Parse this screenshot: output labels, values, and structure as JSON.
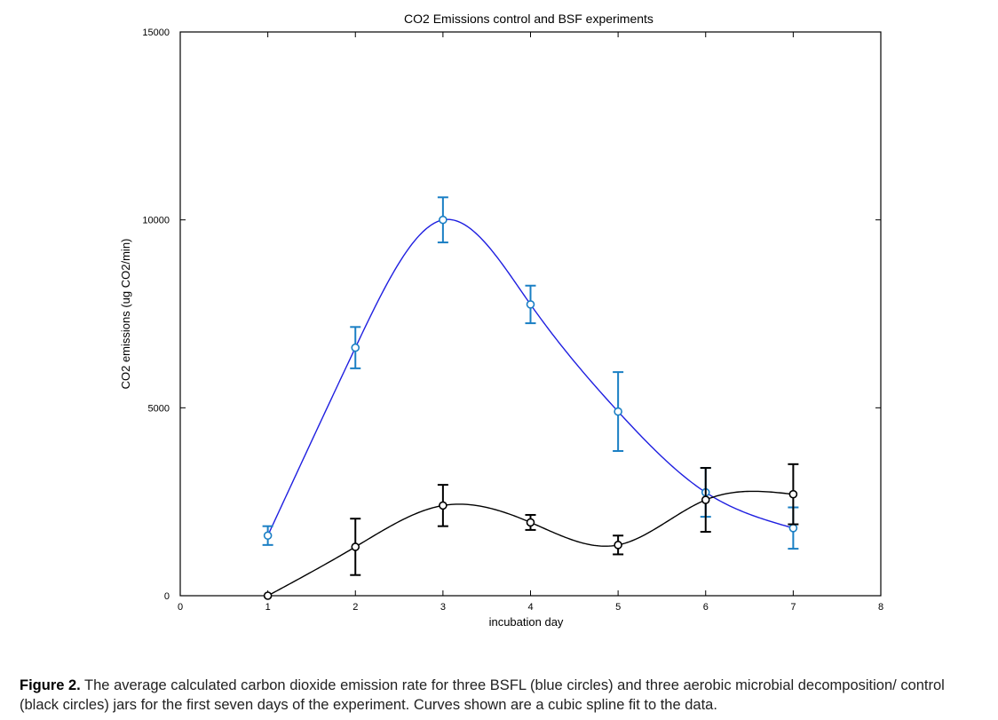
{
  "chart_data": {
    "type": "scatter",
    "title": "CO2 Emissions control and BSF experiments",
    "xlabel": "incubation day",
    "ylabel": "CO2 emissions (ug CO2/min)",
    "xlim": [
      0,
      8
    ],
    "ylim": [
      0,
      15000
    ],
    "x_ticks": [
      "0",
      "1",
      "2",
      "3",
      "4",
      "5",
      "6",
      "7",
      "8"
    ],
    "y_ticks": [
      "0",
      "5000",
      "10000",
      "15000"
    ],
    "grid": false,
    "series": [
      {
        "name": "BSFL (blue circles)",
        "marker_color": "#1a7fc4",
        "fit_color": "#1f1fe0",
        "x": [
          1,
          2,
          3,
          4,
          5,
          6,
          7
        ],
        "y": [
          1600,
          6600,
          10000,
          7750,
          4900,
          2750,
          1800
        ],
        "err": [
          250,
          550,
          600,
          500,
          1050,
          650,
          550
        ]
      },
      {
        "name": "control (black circles)",
        "marker_color": "#000000",
        "fit_color": "#000000",
        "x": [
          1,
          2,
          3,
          4,
          5,
          6,
          7
        ],
        "y": [
          0,
          1300,
          2400,
          1950,
          1350,
          2550,
          2700
        ],
        "err": [
          0,
          750,
          550,
          200,
          250,
          850,
          800
        ]
      }
    ],
    "fit": "cubic spline"
  },
  "caption": {
    "label": "Figure 2.",
    "text": " The average calculated carbon dioxide emission rate for three BSFL (blue circles) and three aerobic microbial decomposition/ control (black circles) jars for the first seven days of the experiment. Curves shown are a cubic spline fit to the data."
  }
}
